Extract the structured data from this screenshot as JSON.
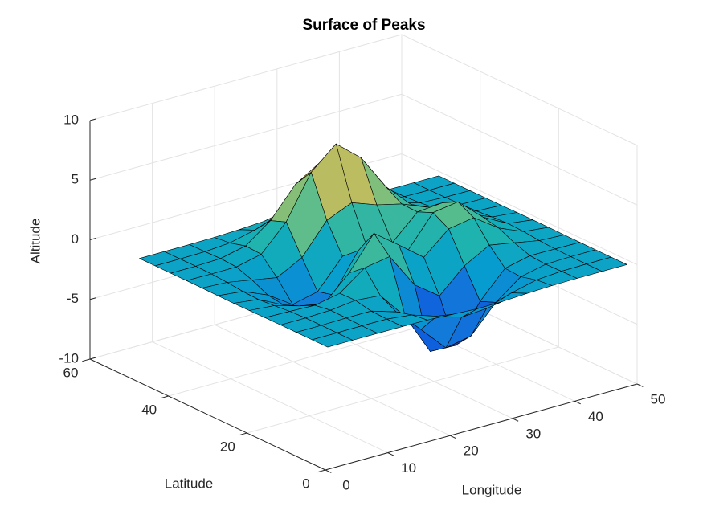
{
  "chart_data": {
    "type": "surface",
    "title": "Surface of Peaks",
    "x_label": "Longitude",
    "y_label": "Latitude",
    "z_label": "Altitude",
    "colormap": "parula",
    "grid": true,
    "edge_color": "#000000",
    "x": [
      1,
      5,
      9,
      13,
      17,
      21,
      25,
      29,
      33,
      37,
      41,
      45,
      49
    ],
    "y": [
      1,
      5,
      9,
      13,
      17,
      21,
      25,
      29,
      33,
      37,
      41,
      45,
      49
    ],
    "z": [
      [
        0,
        0,
        0,
        0,
        -0.03,
        -0.14,
        -0.24,
        -0.22,
        -0.11,
        -0.03,
        0,
        0,
        0
      ],
      [
        0,
        0,
        0.01,
        0,
        -0.23,
        -0.91,
        -1.57,
        -1.41,
        -0.69,
        -0.18,
        -0.03,
        0,
        0
      ],
      [
        0,
        0.01,
        0.05,
        0.05,
        -0.59,
        -2.64,
        -4.76,
        -4.35,
        -2.1,
        -0.53,
        -0.06,
        0,
        0
      ],
      [
        0,
        0.01,
        0.08,
        0.33,
        0.15,
        -2.19,
        -5.68,
        -5.76,
        -2.64,
        -0.44,
        0.04,
        0.03,
        0
      ],
      [
        -0.01,
        -0.06,
        -0.13,
        0.3,
        1.86,
        2.22,
        -0.72,
        -2.22,
        -0.27,
        0.88,
        0.5,
        0.11,
        0.01
      ],
      [
        -0.03,
        -0.2,
        -0.8,
        -1.21,
        0.8,
        3.55,
        2.0,
        0.39,
        2.2,
        2.56,
        1.12,
        0.24,
        0.03
      ],
      [
        -0.04,
        -0.3,
        -1.33,
        -2.77,
        -1.65,
        1.48,
        0.98,
        0.37,
        2.94,
        3.27,
        1.41,
        0.3,
        0.03
      ],
      [
        -0.03,
        -0.25,
        -1.12,
        -2.49,
        -2.0,
        0.39,
        0.46,
        0.38,
        2.38,
        2.56,
        1.09,
        0.23,
        0.03
      ],
      [
        -0.01,
        -0.11,
        -0.48,
        -0.86,
        0.23,
        2.79,
        3.69,
        2.93,
        2.43,
        1.58,
        0.58,
        0.11,
        0.01
      ],
      [
        0,
        -0.02,
        -0.01,
        0.48,
        2.61,
        6.2,
        8.0,
        6.25,
        3.25,
        1.19,
        0.29,
        0.05,
        0
      ],
      [
        0,
        0.01,
        0.08,
        0.55,
        2.1,
        4.56,
        5.86,
        4.57,
        2.21,
        0.68,
        0.13,
        0.02,
        0
      ],
      [
        0,
        0,
        0.03,
        0.19,
        0.69,
        1.47,
        1.88,
        1.47,
        0.7,
        0.2,
        0.04,
        0,
        0
      ],
      [
        0,
        0,
        0.01,
        0.03,
        0.11,
        0.23,
        0.3,
        0.23,
        0.11,
        0.03,
        0.01,
        0,
        0
      ]
    ],
    "xlim": [
      0,
      50
    ],
    "xticks": [
      0,
      10,
      20,
      30,
      40,
      50
    ],
    "ylim": [
      0,
      60
    ],
    "yticks": [
      0,
      20,
      40,
      60
    ],
    "zlim": [
      -10,
      10
    ],
    "zticks": [
      -10,
      -5,
      0,
      5,
      10
    ]
  }
}
